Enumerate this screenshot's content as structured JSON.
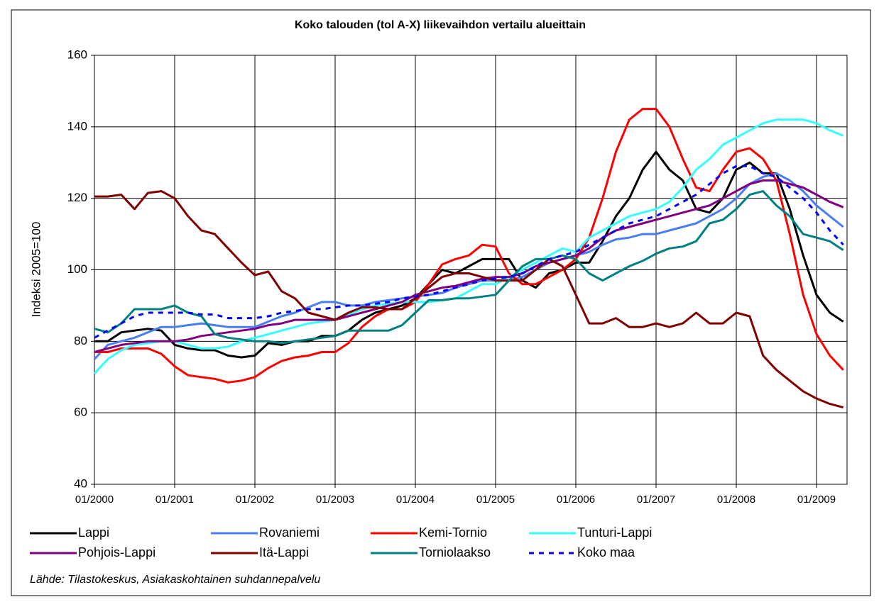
{
  "chart_data": {
    "type": "line",
    "title": "Koko talouden (tol A-X) liikevaihdon vertailu alueittain",
    "y_label": "Indeksi 2005=100",
    "source": "Lähde: Tilastokeskus, Asiakaskohtainen suhdannepalvelu",
    "categories": [
      "01/2000",
      null,
      null,
      null,
      null,
      null,
      "01/2001",
      null,
      null,
      null,
      null,
      null,
      "01/2002",
      null,
      null,
      null,
      null,
      null,
      "01/2003",
      null,
      null,
      null,
      null,
      null,
      "01/2004",
      null,
      null,
      null,
      null,
      null,
      "01/2005",
      null,
      null,
      null,
      null,
      null,
      "01/2006",
      null,
      null,
      null,
      null,
      null,
      "01/2007",
      null,
      null,
      null,
      null,
      null,
      "01/2008",
      null,
      null,
      null,
      null,
      null,
      "01/2009",
      null,
      null
    ],
    "ylim": [
      40,
      160
    ],
    "yticks": [
      40,
      60,
      80,
      100,
      120,
      140,
      160
    ],
    "grid": true,
    "series": [
      {
        "name": "Lappi",
        "color": "#000000",
        "values": [
          80,
          80,
          82.5,
          83,
          83.5,
          83,
          79,
          78,
          77.5,
          77.5,
          76,
          75.5,
          76,
          79.5,
          79,
          80,
          80,
          81.5,
          81.5,
          83,
          86,
          88,
          89,
          90,
          92,
          96,
          100,
          99,
          101,
          103,
          103,
          103,
          97,
          95,
          99,
          100,
          102,
          102,
          108,
          115,
          120,
          128,
          133,
          128,
          125,
          117,
          116,
          120,
          128,
          130,
          127,
          127,
          117,
          104,
          93,
          88,
          85.5
        ]
      },
      {
        "name": "Rovaniemi",
        "color": "#4a7ef0",
        "values": [
          75,
          79,
          80,
          81,
          82.5,
          84,
          84,
          84.5,
          85,
          84.5,
          84,
          84,
          84,
          85.5,
          87,
          88,
          89.5,
          91,
          91,
          90,
          90,
          91,
          91.5,
          92,
          92.5,
          93,
          93.5,
          95,
          96,
          97,
          97,
          97,
          98,
          100,
          102,
          103,
          104,
          105,
          107,
          108.5,
          109,
          110,
          110,
          111,
          112,
          113,
          115,
          117,
          120,
          124,
          126,
          127,
          125,
          122,
          118,
          115,
          112
        ]
      },
      {
        "name": "Kemi-Tornio",
        "color": "#ff0000",
        "values": [
          77,
          77,
          78,
          78,
          78,
          76.5,
          73,
          70.5,
          70,
          69.5,
          68.5,
          69,
          70,
          72.5,
          74.5,
          75.5,
          76,
          77,
          77,
          79.5,
          84,
          87,
          89,
          89,
          91,
          96,
          101.5,
          103,
          104,
          107,
          106.5,
          99,
          96,
          96,
          98,
          100,
          103,
          109,
          120,
          133,
          142,
          145,
          145,
          140,
          131,
          123,
          122,
          128,
          133,
          134,
          131,
          125,
          110,
          93,
          82,
          76,
          72
        ]
      },
      {
        "name": "Tunturi-Lappi",
        "color": "#33ffff",
        "values": [
          71,
          75,
          77.5,
          79,
          79.5,
          80,
          80,
          79,
          78,
          78,
          78.5,
          80,
          81,
          82,
          83,
          84,
          85,
          85.5,
          86,
          87.5,
          89,
          90,
          90.5,
          91,
          91,
          91,
          91.5,
          92,
          94,
          96,
          96,
          98,
          100,
          102,
          104,
          106,
          105,
          109,
          111,
          113,
          115,
          116,
          117,
          119,
          123,
          128,
          131,
          135,
          137,
          139,
          141,
          142,
          142,
          142,
          141,
          139,
          137.5
        ]
      },
      {
        "name": "Pohjois-Lappi",
        "color": "#800080",
        "values": [
          77,
          78,
          79,
          79.5,
          80,
          80,
          80,
          80.5,
          81.5,
          82,
          82.5,
          83,
          83.5,
          84.5,
          85,
          86,
          86,
          86,
          86,
          87,
          88,
          89,
          90,
          91,
          93,
          94,
          95,
          95.5,
          96.5,
          97.5,
          98,
          98,
          99,
          101,
          102,
          103,
          104,
          106,
          109,
          111,
          112,
          113,
          114,
          115,
          116,
          117,
          118,
          120,
          122,
          124,
          125,
          125,
          124,
          123,
          121,
          119,
          117.5
        ]
      },
      {
        "name": "Itä-Lappi",
        "color": "#800000",
        "values": [
          120.5,
          120.5,
          121,
          117,
          121.5,
          122,
          120,
          115,
          111,
          110,
          106,
          102,
          98.5,
          99.5,
          94,
          92,
          88,
          87,
          86,
          88,
          89.5,
          89.5,
          89,
          89,
          92,
          95,
          98,
          99,
          99,
          98,
          97,
          97,
          97,
          100,
          103,
          101,
          93,
          85,
          85,
          86.5,
          84,
          84,
          85,
          84,
          85,
          88,
          85,
          85,
          88,
          87,
          76,
          72,
          69,
          66,
          64,
          62.5,
          61.5
        ]
      },
      {
        "name": "Torniolaakso",
        "color": "#008080",
        "values": [
          83.5,
          82.5,
          85,
          89,
          89,
          89,
          90,
          88,
          87,
          82,
          81,
          80.5,
          80,
          80,
          79.5,
          80,
          80.5,
          81,
          81.5,
          83,
          83,
          83,
          83,
          84.5,
          88,
          91.5,
          91.5,
          92,
          92,
          92.5,
          93,
          97,
          101,
          103,
          103,
          104,
          103,
          99,
          97,
          99,
          101,
          102.5,
          104.5,
          106,
          106.5,
          108,
          113,
          114,
          117,
          121,
          122,
          118,
          115,
          110,
          109,
          108,
          105.5
        ]
      },
      {
        "name": "Koko maa",
        "color": "#0000ff",
        "dashed": true,
        "values": [
          81,
          83,
          85,
          87,
          88,
          88,
          88,
          88,
          87.5,
          87.5,
          86.5,
          86.5,
          86.5,
          87,
          88,
          88.5,
          89,
          89,
          89.5,
          90,
          90,
          90.5,
          91,
          92,
          92.5,
          93,
          94,
          95,
          96,
          97,
          97.5,
          98,
          99,
          101,
          103,
          104,
          105,
          107,
          109,
          111,
          113,
          114,
          115,
          117,
          119,
          121,
          124,
          127,
          129,
          129,
          127,
          126,
          123,
          120,
          116,
          111,
          107
        ]
      }
    ]
  }
}
